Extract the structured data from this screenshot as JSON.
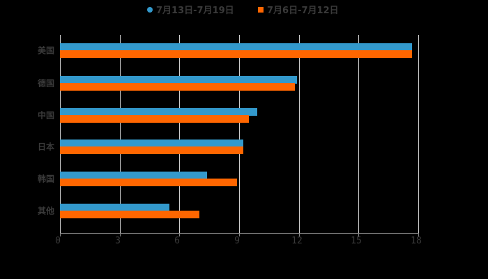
{
  "chart_data": {
    "type": "bar",
    "orientation": "horizontal",
    "title": "",
    "xlabel": "",
    "ylabel": "",
    "xlim": [
      0,
      18
    ],
    "xticks": [
      0,
      3,
      6,
      9,
      12,
      15,
      18
    ],
    "grid": true,
    "legend_position": "top",
    "categories": [
      "美国",
      "德国",
      "中国",
      "日本",
      "韩国",
      "其他"
    ],
    "series": [
      {
        "name": "7月13日-7月19日",
        "color": "#3399cc",
        "marker": "circle",
        "values": [
          17.7,
          11.9,
          9.9,
          9.2,
          7.4,
          5.5
        ]
      },
      {
        "name": "7月6日-7月12日",
        "color": "#ff6600",
        "marker": "square",
        "values": [
          17.7,
          11.8,
          9.5,
          9.2,
          8.9,
          7.0
        ]
      }
    ]
  },
  "legend": {
    "items": [
      {
        "label": "7月13日-7月19日",
        "color": "#3399cc"
      },
      {
        "label": "7月6日-7月12日",
        "color": "#ff6600"
      }
    ]
  }
}
